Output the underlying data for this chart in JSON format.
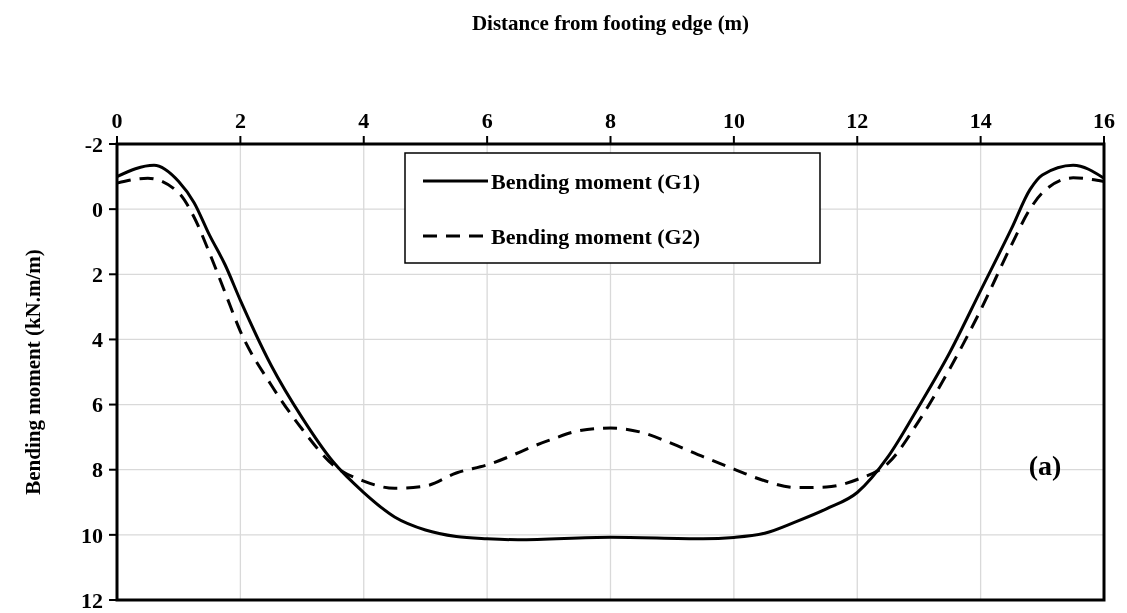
{
  "chart_data": {
    "type": "line",
    "xlabel": "Distance from footing edge (m)",
    "ylabel": "Bending moment (kN.m/m)",
    "xlim": [
      0,
      16
    ],
    "xticks": [
      0,
      2,
      4,
      6,
      8,
      10,
      12,
      14,
      16
    ],
    "ylim": [
      12,
      -2
    ],
    "yticks": [
      -2,
      0,
      2,
      4,
      6,
      8,
      10,
      12
    ],
    "grid": true,
    "legend": "top",
    "annotations": [
      "(a)"
    ],
    "series": [
      {
        "name": "Bending moment (G1)",
        "color": "#000000",
        "line_style": "solid",
        "x": [
          0,
          0.6,
          1,
          1.25,
          1.5,
          1.75,
          2,
          2.5,
          3,
          3.5,
          4,
          4.5,
          5,
          5.5,
          6,
          6.5,
          8,
          9.5,
          10,
          10.5,
          11,
          11.5,
          12,
          12.5,
          13,
          13.5,
          14,
          14.5,
          14.8,
          15,
          15.5,
          16
        ],
        "values": [
          -1.0,
          -1.35,
          -0.85,
          -0.2,
          0.8,
          1.7,
          2.8,
          4.8,
          6.4,
          7.75,
          8.7,
          9.45,
          9.85,
          10.05,
          10.12,
          10.15,
          10.07,
          10.12,
          10.08,
          9.95,
          9.6,
          9.2,
          8.7,
          7.6,
          6.05,
          4.4,
          2.5,
          0.6,
          -0.6,
          -1.05,
          -1.35,
          -0.95
        ]
      },
      {
        "name": "Bending moment (G2)",
        "color": "#000000",
        "line_style": "dashed",
        "x": [
          0,
          0.5,
          1,
          1.25,
          1.5,
          1.75,
          2,
          2.5,
          3,
          3.5,
          4,
          4.5,
          5,
          5.5,
          6,
          7,
          7.5,
          8,
          8.5,
          9,
          9.5,
          10,
          10.5,
          11,
          11.5,
          12,
          12.5,
          13,
          13.5,
          14,
          14.5,
          14.8,
          15,
          15.5,
          16
        ],
        "values": [
          -0.8,
          -0.95,
          -0.5,
          0.25,
          1.35,
          2.55,
          3.75,
          5.4,
          6.75,
          7.85,
          8.35,
          8.57,
          8.5,
          8.1,
          7.85,
          7.1,
          6.8,
          6.72,
          6.85,
          7.2,
          7.6,
          7.98,
          8.34,
          8.55,
          8.53,
          8.3,
          7.8,
          6.5,
          4.9,
          3.1,
          1.1,
          0.0,
          -0.5,
          -0.96,
          -0.85
        ]
      }
    ]
  }
}
